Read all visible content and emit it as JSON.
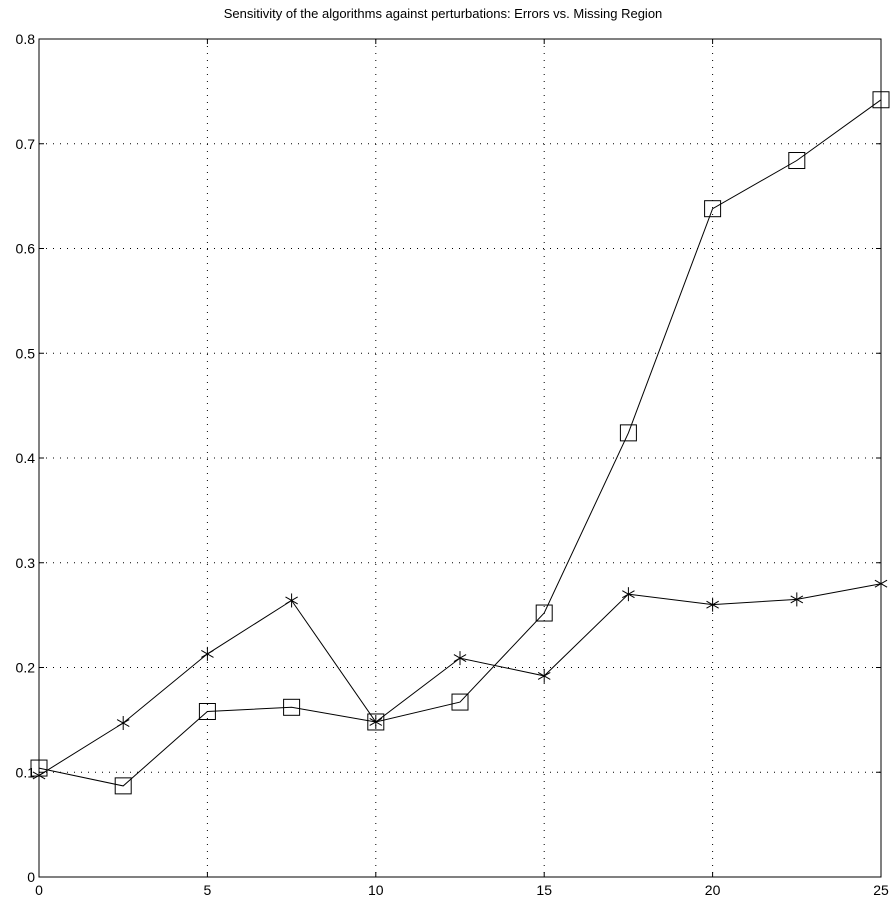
{
  "chart_data": {
    "type": "line",
    "title": "Sensitivity of the algorithms against perturbations: Errors vs. Missing Region",
    "xlabel": "",
    "ylabel": "",
    "xlim": [
      0,
      25
    ],
    "ylim": [
      0,
      0.8
    ],
    "x_ticks": [
      0,
      5,
      10,
      15,
      20,
      25
    ],
    "x_tick_labels": [
      "0",
      "5",
      "10",
      "15",
      "20",
      "25"
    ],
    "y_ticks": [
      0,
      0.1,
      0.2,
      0.3,
      0.4,
      0.5,
      0.6,
      0.7,
      0.8
    ],
    "y_tick_labels": [
      "0",
      "0.1",
      "0.2",
      "0.3",
      "0.4",
      "0.5",
      "0.6",
      "0.7",
      "0.8"
    ],
    "grid": true,
    "legend": "none",
    "x": [
      0,
      2.5,
      5,
      7.5,
      10,
      12.5,
      15,
      17.5,
      20,
      22.5,
      25
    ],
    "series": [
      {
        "marker": "square",
        "values": [
          0.104,
          0.087,
          0.158,
          0.162,
          0.148,
          0.167,
          0.252,
          0.424,
          0.638,
          0.684,
          0.742
        ]
      },
      {
        "marker": "asterisk",
        "values": [
          0.097,
          0.147,
          0.213,
          0.264,
          0.148,
          0.209,
          0.192,
          0.27,
          0.26,
          0.265,
          0.28
        ]
      }
    ]
  }
}
